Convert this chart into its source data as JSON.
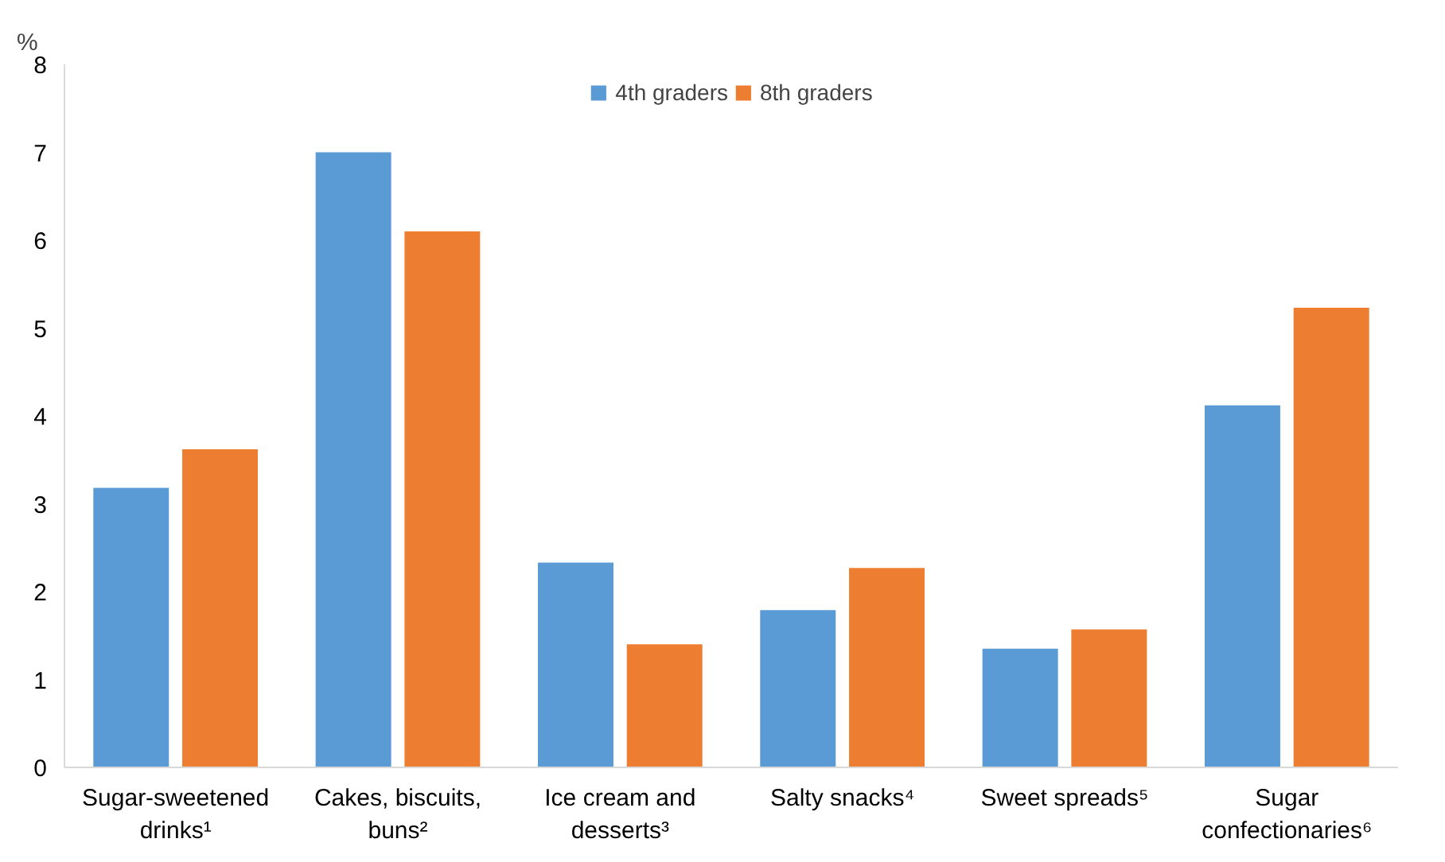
{
  "chart_data": {
    "type": "bar",
    "ylabel": "%",
    "categories": [
      "Sugar-sweetened drinks¹",
      "Cakes, biscuits, buns²",
      "Ice cream and desserts³",
      "Salty snacks⁴",
      "Sweet spreads⁵",
      "Sugar confectionaries⁶"
    ],
    "series": [
      {
        "name": "4th graders",
        "color": "#5b9bd5",
        "values": [
          3.18,
          7.0,
          2.33,
          1.79,
          1.35,
          4.12
        ]
      },
      {
        "name": "8th graders",
        "color": "#ed7d31",
        "values": [
          3.62,
          6.1,
          1.4,
          2.27,
          1.57,
          5.23
        ]
      }
    ],
    "ylim": [
      0,
      8
    ],
    "yticks": [
      0,
      1,
      2,
      3,
      4,
      5,
      6,
      7,
      8
    ],
    "grid": false,
    "legend": "top"
  }
}
